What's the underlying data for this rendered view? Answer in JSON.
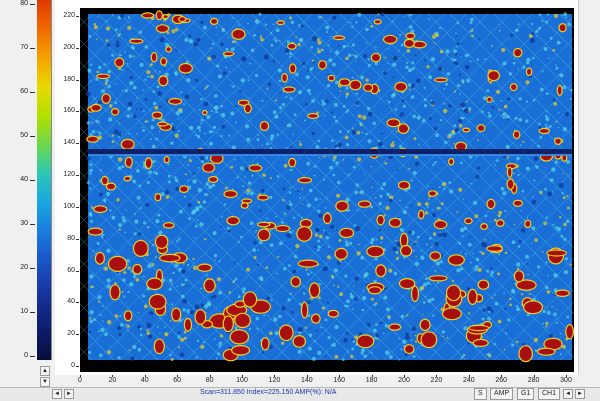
{
  "colorbar": {
    "labels": [
      "80",
      "70",
      "60",
      "50",
      "40",
      "30",
      "20",
      "10",
      "0"
    ]
  },
  "plot": {
    "y_labels": [
      "220",
      "200",
      "180",
      "160",
      "140",
      "120",
      "100",
      "80",
      "60",
      "40",
      "20",
      "0"
    ],
    "x_labels": [
      "0",
      "20",
      "40",
      "60",
      "80",
      "100",
      "120",
      "140",
      "160",
      "180",
      "200",
      "220",
      "240",
      "260",
      "280",
      "300"
    ],
    "colors": {
      "background": "#1a6fd6",
      "hot": "#a81010",
      "warm": "#f0d020",
      "mid": "#5ad8e8",
      "dark": "#0a1860"
    }
  },
  "controls": {
    "up_arrow": "▲",
    "down_arrow": "▼",
    "left_arrow": "◄",
    "right_arrow": "►"
  },
  "status": {
    "readout": "Scan=311.850 Index=225.150 AMP(%): N/A",
    "buttons": [
      "S",
      "AMP",
      "G1",
      "CH1"
    ]
  }
}
